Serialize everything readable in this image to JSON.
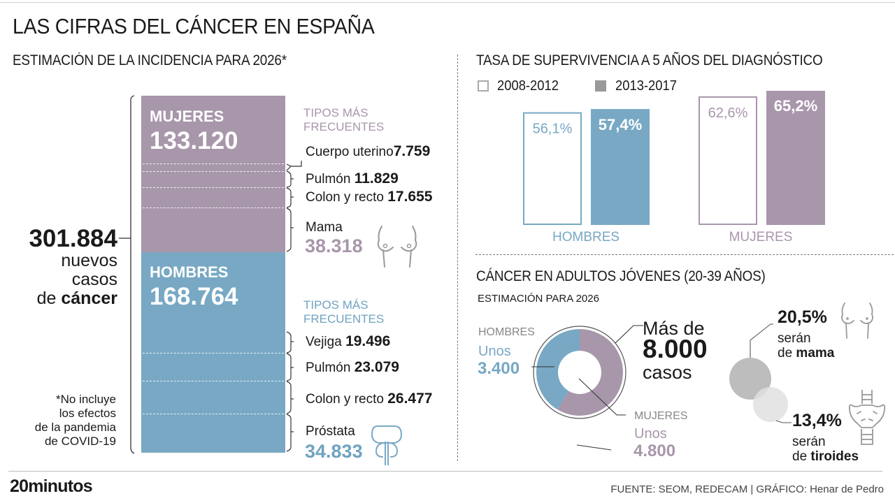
{
  "title": "LAS CIFRAS DEL CÁNCER EN ESPAÑA",
  "colors": {
    "women": "#a896ab",
    "men": "#78a8c4",
    "women_text": "#a896ab",
    "men_text": "#6fa3c0",
    "gray_text": "#888888"
  },
  "incidence": {
    "heading": "ESTIMACIÓN DE LA INCIDENCIA PARA 2026*",
    "total": {
      "value": "301.884",
      "line1": "nuevos",
      "line2": "casos",
      "line3_pre": "de ",
      "line3_bold": "cáncer"
    },
    "note": [
      "*No incluye",
      "los efectos",
      "de la pandemia",
      "de COVID-19"
    ],
    "women": {
      "label": "MUJERES",
      "value": "133.120",
      "types_heading": [
        "TIPOS MÁS",
        "FRECUENTES"
      ],
      "types": [
        {
          "name": "Cuerpo uterino",
          "value": "7.759"
        },
        {
          "name": "Pulmón",
          "value": "11.829"
        },
        {
          "name": "Colon y recto",
          "value": "17.655"
        },
        {
          "name": "Mama",
          "value": "38.318"
        }
      ],
      "icon": "breasts-icon"
    },
    "men": {
      "label": "HOMBRES",
      "value": "168.764",
      "types_heading": [
        "TIPOS MÁS",
        "FRECUENTES"
      ],
      "types": [
        {
          "name": "Vejiga",
          "value": "19.496"
        },
        {
          "name": "Pulmón",
          "value": "23.079"
        },
        {
          "name": "Colon y recto",
          "value": "26.477"
        },
        {
          "name": "Próstata",
          "value": "34.833"
        }
      ],
      "icon": "prostate-icon"
    }
  },
  "survival": {
    "heading": "TASA DE SUPERVIVENCIA A 5 AÑOS DEL DIAGNÓSTICO",
    "legend": [
      {
        "label": "2008-2012",
        "style": "outline"
      },
      {
        "label": "2013-2017",
        "style": "filled"
      }
    ],
    "groups": [
      {
        "label": "HOMBRES",
        "values": [
          "56,1%",
          "57,4%"
        ]
      },
      {
        "label": "MUJERES",
        "values": [
          "62,6%",
          "65,2%"
        ]
      }
    ]
  },
  "young": {
    "heading": "CÁNCER EN ADULTOS JÓVENES (20-39 AÑOS)",
    "subheading": "ESTIMACIÓN PARA 2026",
    "total": {
      "pre": "Más de",
      "value": "8.000",
      "post": "casos"
    },
    "men": {
      "label": "HOMBRES",
      "pre": "Unos",
      "value": "3.400"
    },
    "women": {
      "label": "MUJERES",
      "pre": "Unos",
      "value": "4.800"
    },
    "breast": {
      "pct": "20,5%",
      "line1": "serán",
      "line2_pre": "de ",
      "line2_bold": "mama",
      "icon": "breasts-icon"
    },
    "thyroid": {
      "pct": "13,4%",
      "line1": "serán",
      "line2_pre": "de ",
      "line2_bold": "tiroides",
      "icon": "thyroid-icon"
    }
  },
  "chart_data": [
    {
      "type": "bar",
      "title": "ESTIMACIÓN DE LA INCIDENCIA PARA 2026*",
      "categories": [
        "Mujeres",
        "Hombres"
      ],
      "values": [
        133120,
        168764
      ],
      "total": 301884,
      "stacked": true,
      "breakdown": {
        "Mujeres": {
          "Cuerpo uterino": 7759,
          "Pulmón": 11829,
          "Colon y recto": 17655,
          "Mama": 38318
        },
        "Hombres": {
          "Vejiga": 19496,
          "Pulmón": 23079,
          "Colon y recto": 26477,
          "Próstata": 34833
        }
      }
    },
    {
      "type": "bar",
      "title": "TASA DE SUPERVIVENCIA A 5 AÑOS DEL DIAGNÓSTICO",
      "categories": [
        "HOMBRES",
        "MUJERES"
      ],
      "series": [
        {
          "name": "2008-2012",
          "values": [
            56.1,
            62.6
          ]
        },
        {
          "name": "2013-2017",
          "values": [
            57.4,
            65.2
          ]
        }
      ],
      "ylim": [
        0,
        100
      ],
      "legend": "top-left",
      "grid": false
    },
    {
      "type": "pie",
      "title": "CÁNCER EN ADULTOS JÓVENES (20-39 AÑOS)",
      "categories": [
        "HOMBRES",
        "MUJERES"
      ],
      "values": [
        3400,
        4800
      ],
      "total_label": "Más de 8.000 casos",
      "donut": true
    }
  ],
  "footer": {
    "logo": "20minutos",
    "source": "FUENTE: SEOM, REDECAM  |  GRÁFICO: Henar de Pedro"
  }
}
